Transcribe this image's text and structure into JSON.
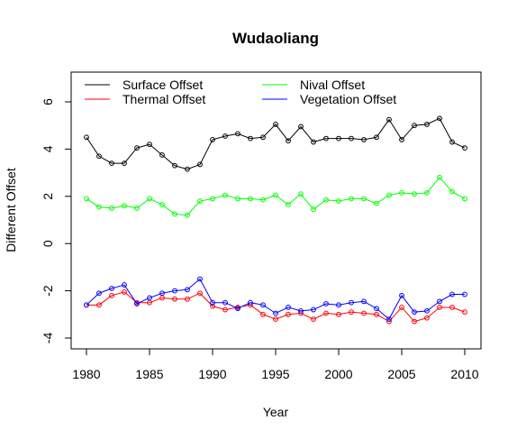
{
  "chart_data": {
    "type": "line",
    "title": "Wudaoliang",
    "xlabel": "Year",
    "ylabel": "Different Offset",
    "xlim": [
      1980,
      2010
    ],
    "ylim": [
      -4,
      6
    ],
    "x_ticks": [
      1980,
      1985,
      1990,
      1995,
      2000,
      2005,
      2010
    ],
    "y_ticks": [
      -4,
      -2,
      0,
      2,
      4,
      6
    ],
    "legend_position": "top-left",
    "grid": false,
    "x": [
      1980,
      1981,
      1982,
      1983,
      1984,
      1985,
      1986,
      1987,
      1988,
      1989,
      1990,
      1991,
      1992,
      1993,
      1994,
      1995,
      1996,
      1997,
      1998,
      1999,
      2000,
      2001,
      2002,
      2003,
      2004,
      2005,
      2006,
      2007,
      2008,
      2009,
      2010
    ],
    "series": [
      {
        "name": "Surface Offset",
        "color": "#000000",
        "values": [
          4.5,
          3.7,
          3.4,
          3.4,
          4.05,
          4.2,
          3.75,
          3.3,
          3.15,
          3.35,
          4.4,
          4.55,
          4.65,
          4.45,
          4.5,
          5.05,
          4.35,
          4.95,
          4.3,
          4.45,
          4.45,
          4.45,
          4.4,
          4.5,
          5.25,
          4.4,
          5.0,
          5.05,
          5.3,
          4.3,
          4.05
        ]
      },
      {
        "name": "Thermal Offset",
        "color": "#ff0000",
        "values": [
          -2.6,
          -2.6,
          -2.2,
          -2.05,
          -2.5,
          -2.5,
          -2.3,
          -2.35,
          -2.35,
          -2.1,
          -2.65,
          -2.8,
          -2.7,
          -2.6,
          -3.0,
          -3.2,
          -3.0,
          -2.95,
          -3.2,
          -2.95,
          -3.0,
          -2.9,
          -2.95,
          -3.0,
          -3.3,
          -2.7,
          -3.3,
          -3.15,
          -2.7,
          -2.7,
          -2.9
        ]
      },
      {
        "name": "Nival Offset",
        "color": "#00ff00",
        "values": [
          1.9,
          1.55,
          1.5,
          1.6,
          1.5,
          1.9,
          1.65,
          1.25,
          1.2,
          1.8,
          1.9,
          2.05,
          1.9,
          1.9,
          1.85,
          2.05,
          1.65,
          2.1,
          1.45,
          1.85,
          1.8,
          1.9,
          1.9,
          1.7,
          2.05,
          2.15,
          2.1,
          2.15,
          2.8,
          2.2,
          1.9
        ]
      },
      {
        "name": "Vegetation Offset",
        "color": "#0000ff",
        "values": [
          -2.6,
          -2.1,
          -1.9,
          -1.75,
          -2.55,
          -2.3,
          -2.1,
          -2.0,
          -1.95,
          -1.5,
          -2.5,
          -2.5,
          -2.75,
          -2.5,
          -2.6,
          -2.95,
          -2.7,
          -2.85,
          -2.8,
          -2.55,
          -2.6,
          -2.5,
          -2.45,
          -2.75,
          -3.2,
          -2.2,
          -2.9,
          -2.85,
          -2.45,
          -2.15,
          -2.15
        ]
      }
    ]
  }
}
